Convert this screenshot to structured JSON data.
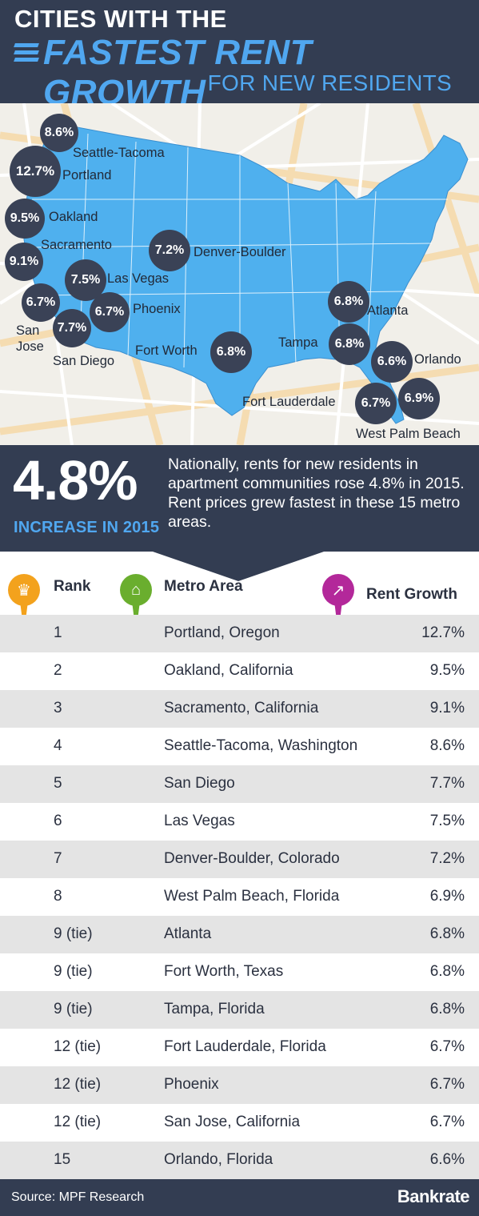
{
  "header": {
    "line1": "CITIES WITH THE",
    "line2": "FASTEST RENT GROWTH",
    "line3": "FOR NEW RESIDENTS"
  },
  "map": {
    "cities": [
      {
        "name": "Seattle-Tacoma",
        "value": "8.6%"
      },
      {
        "name": "Portland",
        "value": "12.7%"
      },
      {
        "name": "Oakland",
        "value": "9.5%"
      },
      {
        "name": "Sacramento",
        "value": "9.1%"
      },
      {
        "name": "San Jose",
        "value": "6.7%"
      },
      {
        "name": "San Diego",
        "value": "7.7%"
      },
      {
        "name": "Las Vegas",
        "value": "7.5%"
      },
      {
        "name": "Phoenix",
        "value": "6.7%"
      },
      {
        "name": "Denver-Boulder",
        "value": "7.2%"
      },
      {
        "name": "Fort Worth",
        "value": "6.8%"
      },
      {
        "name": "Atlanta",
        "value": "6.8%"
      },
      {
        "name": "Tampa",
        "value": "6.8%"
      },
      {
        "name": "Orlando",
        "value": "6.6%"
      },
      {
        "name": "Fort Lauderdale",
        "value": "6.7%"
      },
      {
        "name": "West Palm Beach",
        "value": "6.9%"
      }
    ]
  },
  "stat": {
    "big": "4.8%",
    "caption": "INCREASE IN 2015",
    "description": "Nationally, rents for new residents in apartment communities rose 4.8% in 2015. Rent prices grew fastest in these 15 metro areas."
  },
  "table": {
    "headers": {
      "rank": "Rank",
      "metro": "Metro Area",
      "growth": "Rent Growth"
    },
    "rows": [
      {
        "rank": "1",
        "metro": "Portland, Oregon",
        "growth": "12.7%"
      },
      {
        "rank": "2",
        "metro": "Oakland, California",
        "growth": "9.5%"
      },
      {
        "rank": "3",
        "metro": "Sacramento, California",
        "growth": "9.1%"
      },
      {
        "rank": "4",
        "metro": "Seattle-Tacoma, Washington",
        "growth": "8.6%"
      },
      {
        "rank": "5",
        "metro": "San Diego",
        "growth": "7.7%"
      },
      {
        "rank": "6",
        "metro": "Las Vegas",
        "growth": "7.5%"
      },
      {
        "rank": "7",
        "metro": "Denver-Boulder, Colorado",
        "growth": "7.2%"
      },
      {
        "rank": "8",
        "metro": "West Palm Beach, Florida",
        "growth": "6.9%"
      },
      {
        "rank": "9 (tie)",
        "metro": "Atlanta",
        "growth": "6.8%"
      },
      {
        "rank": "9 (tie)",
        "metro": "Fort Worth, Texas",
        "growth": "6.8%"
      },
      {
        "rank": "9 (tie)",
        "metro": "Tampa, Florida",
        "growth": "6.8%"
      },
      {
        "rank": "12 (tie)",
        "metro": "Fort Lauderdale, Florida",
        "growth": "6.7%"
      },
      {
        "rank": "12 (tie)",
        "metro": "Phoenix",
        "growth": "6.7%"
      },
      {
        "rank": "12 (tie)",
        "metro": "San Jose, California",
        "growth": "6.7%"
      },
      {
        "rank": "15",
        "metro": "Orlando, Florida",
        "growth": "6.6%"
      }
    ]
  },
  "footer": {
    "source": "Source: MPF Research",
    "brand": "Bankrate"
  },
  "colors": {
    "navy": "#333d52",
    "accent": "#50a7f0",
    "map_blue": "#4fb0ee",
    "bubble": "#3a4256"
  },
  "icons": {
    "rank": "crown-icon",
    "metro": "house-icon",
    "growth": "chart-icon"
  }
}
